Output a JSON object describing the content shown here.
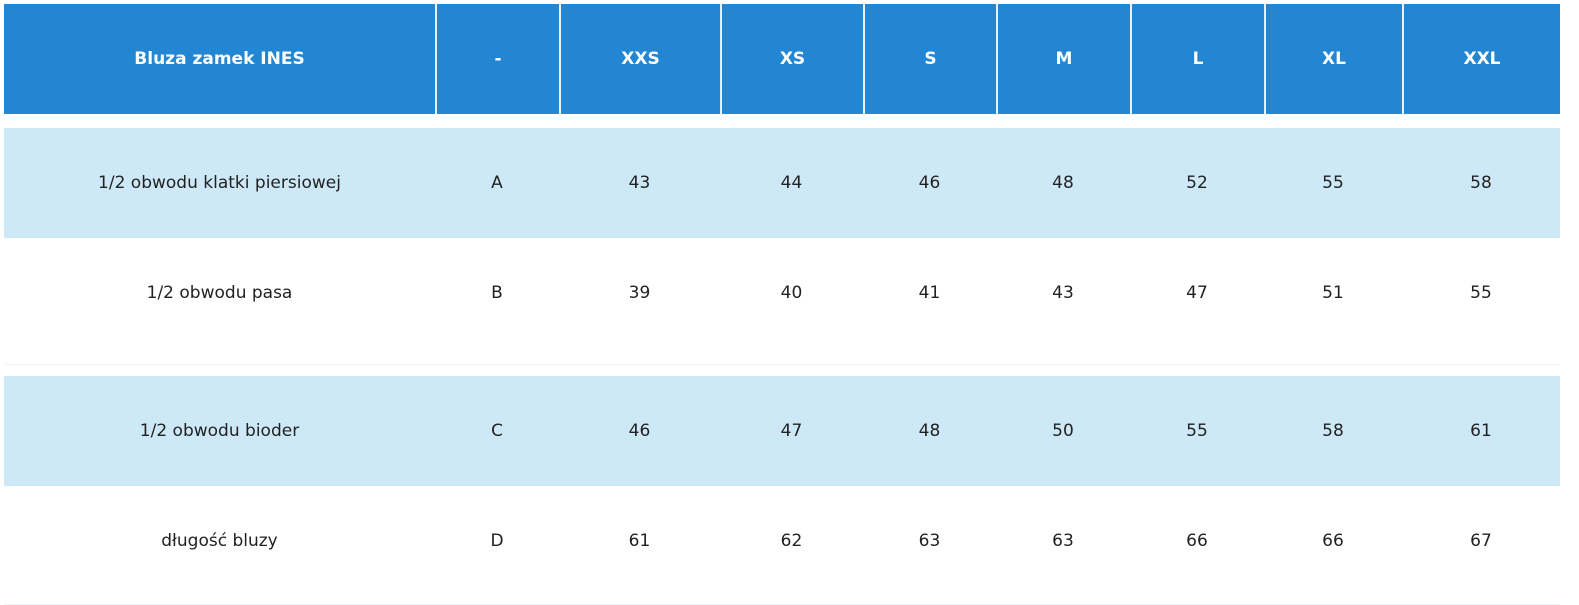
{
  "table": {
    "header": [
      "Bluza zamek INES",
      "-",
      "XXS",
      "XS",
      "S",
      "M",
      "L",
      "XL",
      "XXL"
    ],
    "rows": [
      [
        "1/2 obwodu klatki piersiowej",
        "A",
        43,
        44,
        46,
        48,
        52,
        55,
        58
      ],
      [
        "1/2 obwodu pasa",
        "B",
        39,
        40,
        41,
        43,
        47,
        51,
        55
      ],
      [
        "1/2 obwodu bioder",
        "C",
        46,
        47,
        48,
        50,
        55,
        58,
        61
      ],
      [
        "długość bluzy",
        "D",
        61,
        62,
        63,
        63,
        66,
        66,
        67
      ]
    ]
  }
}
